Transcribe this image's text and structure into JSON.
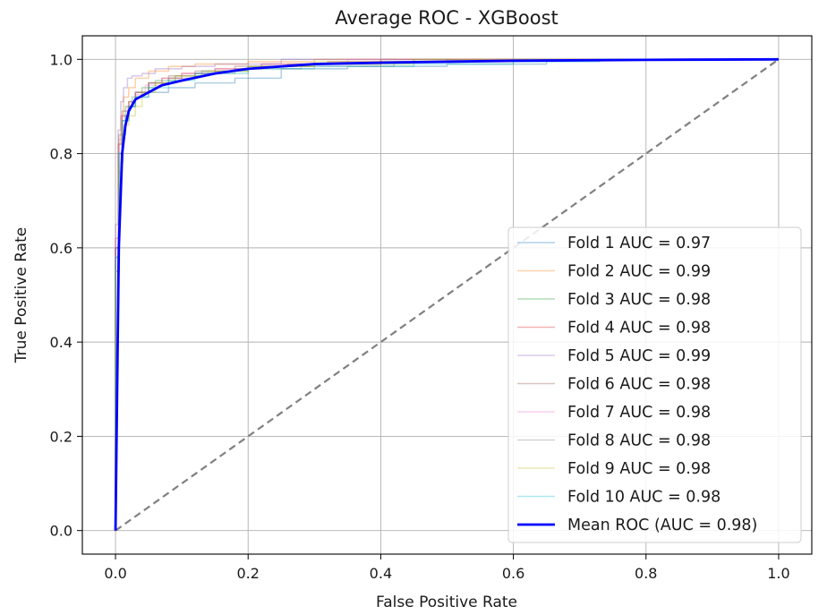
{
  "chart_data": {
    "type": "line",
    "title": "Average ROC - XGBoost",
    "xlabel": "False Positive Rate",
    "ylabel": "True Positive Rate",
    "xlim": [
      -0.05,
      1.05
    ],
    "ylim": [
      -0.05,
      1.05
    ],
    "xticks": [
      "0.0",
      "0.2",
      "0.4",
      "0.6",
      "0.8",
      "1.0"
    ],
    "yticks": [
      "0.0",
      "0.2",
      "0.4",
      "0.6",
      "0.8",
      "1.0"
    ],
    "grid": true,
    "legend_position": "lower right",
    "reference_line": {
      "x": [
        0,
        1
      ],
      "y": [
        0,
        1
      ],
      "color": "#808080",
      "style": "dashed"
    },
    "series": [
      {
        "name": "Fold 1 AUC = 0.97",
        "color": "#1f77b4",
        "step": true,
        "x": [
          0,
          0.005,
          0.01,
          0.015,
          0.02,
          0.03,
          0.05,
          0.08,
          0.12,
          0.18,
          0.25,
          0.35,
          0.5,
          0.65,
          0.8,
          1.0
        ],
        "y": [
          0,
          0.55,
          0.76,
          0.84,
          0.88,
          0.9,
          0.92,
          0.93,
          0.94,
          0.95,
          0.96,
          0.98,
          0.985,
          0.99,
          1.0,
          1.0
        ]
      },
      {
        "name": "Fold 2 AUC = 0.99",
        "color": "#ff7f0e",
        "step": true,
        "x": [
          0,
          0.004,
          0.008,
          0.012,
          0.02,
          0.03,
          0.05,
          0.08,
          0.12,
          0.2,
          0.3,
          0.5,
          1.0
        ],
        "y": [
          0,
          0.62,
          0.82,
          0.88,
          0.92,
          0.94,
          0.96,
          0.975,
          0.985,
          0.99,
          0.995,
          1.0,
          1.0
        ]
      },
      {
        "name": "Fold 3 AUC = 0.98",
        "color": "#2ca02c",
        "step": true,
        "x": [
          0,
          0.005,
          0.01,
          0.015,
          0.025,
          0.04,
          0.06,
          0.09,
          0.13,
          0.2,
          0.3,
          0.45,
          0.6,
          1.0
        ],
        "y": [
          0,
          0.58,
          0.8,
          0.87,
          0.9,
          0.92,
          0.94,
          0.955,
          0.965,
          0.975,
          0.985,
          0.99,
          1.0,
          1.0
        ]
      },
      {
        "name": "Fold 4 AUC = 0.98",
        "color": "#d62728",
        "step": true,
        "x": [
          0,
          0.005,
          0.01,
          0.02,
          0.03,
          0.05,
          0.07,
          0.1,
          0.15,
          0.22,
          0.32,
          0.5,
          1.0
        ],
        "y": [
          0,
          0.6,
          0.82,
          0.88,
          0.91,
          0.93,
          0.95,
          0.96,
          0.97,
          0.98,
          0.99,
          0.995,
          1.0
        ]
      },
      {
        "name": "Fold 5 AUC = 0.99",
        "color": "#9467bd",
        "step": true,
        "x": [
          0,
          0.004,
          0.008,
          0.012,
          0.018,
          0.025,
          0.04,
          0.06,
          0.1,
          0.15,
          0.25,
          0.4,
          1.0
        ],
        "y": [
          0,
          0.65,
          0.85,
          0.91,
          0.94,
          0.96,
          0.965,
          0.97,
          0.98,
          0.985,
          0.99,
          1.0,
          1.0
        ]
      },
      {
        "name": "Fold 6 AUC = 0.98",
        "color": "#8c564b",
        "step": true,
        "x": [
          0,
          0.005,
          0.01,
          0.02,
          0.03,
          0.05,
          0.08,
          0.12,
          0.18,
          0.26,
          0.4,
          0.55,
          1.0
        ],
        "y": [
          0,
          0.6,
          0.84,
          0.89,
          0.91,
          0.93,
          0.95,
          0.965,
          0.975,
          0.985,
          0.99,
          1.0,
          1.0
        ]
      },
      {
        "name": "Fold 7 AUC = 0.98",
        "color": "#e377c2",
        "step": true,
        "x": [
          0,
          0.005,
          0.01,
          0.018,
          0.03,
          0.045,
          0.07,
          0.1,
          0.15,
          0.22,
          0.35,
          0.5,
          1.0
        ],
        "y": [
          0,
          0.62,
          0.83,
          0.88,
          0.9,
          0.925,
          0.945,
          0.96,
          0.97,
          0.98,
          0.99,
          1.0,
          1.0
        ]
      },
      {
        "name": "Fold 8 AUC = 0.98",
        "color": "#7f7f7f",
        "step": true,
        "x": [
          0,
          0.005,
          0.01,
          0.02,
          0.03,
          0.05,
          0.08,
          0.12,
          0.18,
          0.28,
          0.42,
          0.6,
          1.0
        ],
        "y": [
          0,
          0.6,
          0.8,
          0.87,
          0.9,
          0.93,
          0.95,
          0.96,
          0.97,
          0.98,
          0.985,
          0.995,
          1.0
        ]
      },
      {
        "name": "Fold 9 AUC = 0.98",
        "color": "#bcbd22",
        "step": true,
        "x": [
          0,
          0.006,
          0.012,
          0.02,
          0.03,
          0.04,
          0.06,
          0.09,
          0.14,
          0.2,
          0.3,
          0.45,
          1.0
        ],
        "y": [
          0,
          0.55,
          0.78,
          0.86,
          0.88,
          0.9,
          0.93,
          0.95,
          0.965,
          0.975,
          0.985,
          0.995,
          1.0
        ]
      },
      {
        "name": "Fold 10 AUC = 0.98",
        "color": "#17becf",
        "step": true,
        "x": [
          0,
          0.005,
          0.01,
          0.02,
          0.03,
          0.05,
          0.08,
          0.12,
          0.2,
          0.3,
          0.45,
          0.6,
          0.73,
          1.0
        ],
        "y": [
          0,
          0.58,
          0.8,
          0.87,
          0.9,
          0.92,
          0.94,
          0.955,
          0.97,
          0.98,
          0.985,
          0.99,
          0.995,
          1.0
        ]
      },
      {
        "name": "Mean ROC (AUC = 0.98)",
        "color": "#0000ff",
        "step": false,
        "mean": true,
        "x": [
          0,
          0.005,
          0.01,
          0.015,
          0.02,
          0.03,
          0.05,
          0.07,
          0.1,
          0.15,
          0.2,
          0.3,
          0.4,
          0.6,
          0.8,
          1.0
        ],
        "y": [
          0,
          0.6,
          0.8,
          0.86,
          0.89,
          0.915,
          0.93,
          0.945,
          0.955,
          0.97,
          0.98,
          0.99,
          0.993,
          0.997,
          0.999,
          1.0
        ]
      }
    ]
  }
}
